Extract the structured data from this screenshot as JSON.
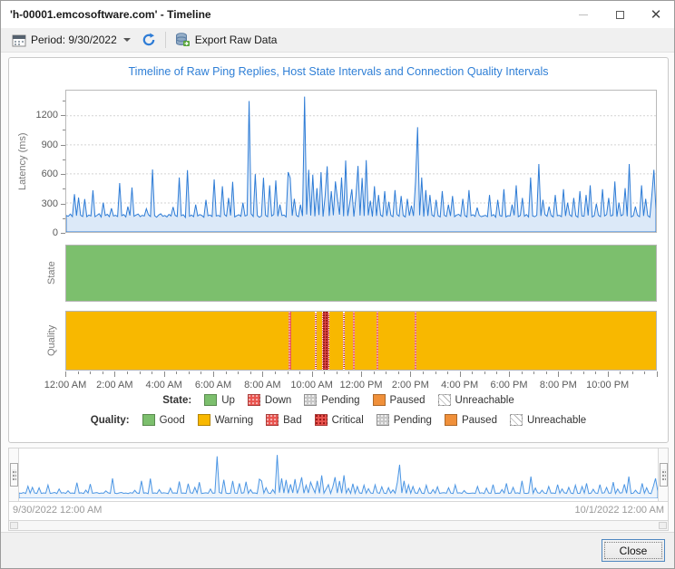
{
  "window": {
    "title": "'h-00001.emcosoftware.com' - Timeline"
  },
  "toolbar": {
    "period_label": "Period: 9/30/2022",
    "export_label": "Export Raw Data"
  },
  "footer": {
    "close_label": "Close"
  },
  "colors": {
    "accent_blue": "#2e7cd6",
    "line_blue": "#2e7cd6",
    "overview_blue": "#4c96e4",
    "area_fill": "#dce9f8",
    "good_green": "#7cbf6d",
    "warning_yellow": "#f8b800",
    "bad_red": "#e9534e",
    "paused_orange": "#f0903a",
    "pending_gray": "#c6c6c6",
    "title_blue": "#2f7fd6"
  },
  "chart_data": {
    "type": "line",
    "title": "Timeline of Raw Ping Replies, Host State Intervals and Connection Quality Intervals",
    "ylabel": "Latency (ms)",
    "ylim": [
      0,
      1460
    ],
    "y_ticks": [
      0,
      300,
      600,
      900,
      1200
    ],
    "x_ticks": [
      "12:00 AM",
      "2:00 AM",
      "4:00 AM",
      "6:00 AM",
      "8:00 AM",
      "10:00 AM",
      "12:00 PM",
      "2:00 PM",
      "4:00 PM",
      "6:00 PM",
      "8:00 PM",
      "10:00 PM"
    ],
    "grid": "dashed-horizontal",
    "legend_position": "bottom",
    "latency_ms": [
      170,
      162,
      185,
      158,
      390,
      168,
      355,
      172,
      160,
      340,
      158,
      175,
      165,
      430,
      158,
      172,
      188,
      155,
      302,
      170,
      182,
      158,
      245,
      165,
      172,
      160,
      505,
      168,
      180,
      155,
      262,
      170,
      460,
      162,
      175,
      185,
      158,
      172,
      165,
      240,
      178,
      160,
      645,
      168,
      152,
      175,
      188,
      162,
      170,
      155,
      182,
      165,
      258,
      172,
      160,
      562,
      168,
      178,
      150,
      638,
      162,
      175,
      158,
      282,
      165,
      180,
      170,
      152,
      332,
      168,
      175,
      160,
      542,
      165,
      172,
      158,
      472,
      180,
      162,
      352,
      170,
      518,
      155,
      168,
      178,
      162,
      302,
      165,
      172,
      1352,
      188,
      160,
      598,
      170,
      152,
      165,
      560,
      172,
      158,
      482,
      165,
      180,
      532,
      162,
      282,
      170,
      175,
      155,
      618,
      558,
      168,
      342,
      172,
      158,
      282,
      165,
      1398,
      180,
      642,
      170,
      592,
      162,
      452,
      175,
      618,
      158,
      372,
      678,
      165,
      422,
      172,
      522,
      342,
      178,
      562,
      162,
      738,
      165,
      302,
      442,
      158,
      372,
      682,
      170,
      558,
      165,
      742,
      172,
      322,
      158,
      472,
      165,
      382,
      175,
      160,
      422,
      165,
      312,
      172,
      158,
      432,
      180,
      162,
      372,
      170,
      155,
      342,
      168,
      272,
      165,
      522,
      1082,
      172,
      562,
      158,
      432,
      165,
      382,
      175,
      160,
      332,
      168,
      155,
      422,
      172,
      160,
      282,
      165,
      372,
      158,
      175,
      182,
      162,
      342,
      170,
      155,
      432,
      168,
      178,
      160,
      252,
      172,
      158,
      165,
      172,
      158,
      382,
      165,
      180,
      152,
      332,
      170,
      162,
      442,
      155,
      168,
      165,
      282,
      172,
      482,
      158,
      170,
      352,
      162,
      180,
      155,
      562,
      165,
      158,
      172,
      702,
      165,
      332,
      180,
      162,
      262,
      170,
      155,
      382,
      168,
      172,
      158,
      442,
      165,
      302,
      178,
      160,
      352,
      168,
      152,
      422,
      165,
      162,
      382,
      170,
      482,
      155,
      168,
      292,
      172,
      158,
      442,
      165,
      180,
      352,
      165,
      172,
      522,
      158,
      302,
      168,
      180,
      452,
      162,
      702,
      155,
      168,
      262,
      172,
      158,
      482,
      165,
      342,
      170,
      152,
      380,
      642,
      232
    ],
    "band_labels": {
      "state": "State",
      "quality": "Quality"
    },
    "state_intervals": [
      {
        "state": "Up",
        "start_frac": 0.0,
        "end_frac": 1.0
      }
    ],
    "quality_base": "Warning",
    "quality_stripes": [
      {
        "kind": "Bad",
        "frac": 0.377,
        "width_frac": 0.004
      },
      {
        "kind": "Critical",
        "frac": 0.421,
        "width_frac": 0.004
      },
      {
        "kind": "Critical",
        "frac": 0.4335,
        "width_frac": 0.012
      },
      {
        "kind": "Critical",
        "frac": 0.469,
        "width_frac": 0.004
      },
      {
        "kind": "Bad",
        "frac": 0.486,
        "width_frac": 0.003
      },
      {
        "kind": "Bad",
        "frac": 0.526,
        "width_frac": 0.004
      },
      {
        "kind": "Bad",
        "frac": 0.59,
        "width_frac": 0.003
      }
    ],
    "overview_range": {
      "start": "9/30/2022 12:00 AM",
      "end": "10/1/2022 12:00 AM"
    }
  },
  "legend": {
    "state": {
      "label": "State:",
      "items": [
        {
          "label": "Up",
          "swatch": "green-solid"
        },
        {
          "label": "Down",
          "swatch": "red-dots"
        },
        {
          "label": "Pending",
          "swatch": "gray-dots"
        },
        {
          "label": "Paused",
          "swatch": "orange-solid"
        },
        {
          "label": "Unreachable",
          "swatch": "hatch"
        }
      ]
    },
    "quality": {
      "label": "Quality:",
      "items": [
        {
          "label": "Good",
          "swatch": "green-solid"
        },
        {
          "label": "Warning",
          "swatch": "yellow-solid"
        },
        {
          "label": "Bad",
          "swatch": "red-dots"
        },
        {
          "label": "Critical",
          "swatch": "red-dark-dots"
        },
        {
          "label": "Pending",
          "swatch": "gray-dots"
        },
        {
          "label": "Paused",
          "swatch": "orange-solid"
        },
        {
          "label": "Unreachable",
          "swatch": "hatch"
        }
      ]
    }
  }
}
